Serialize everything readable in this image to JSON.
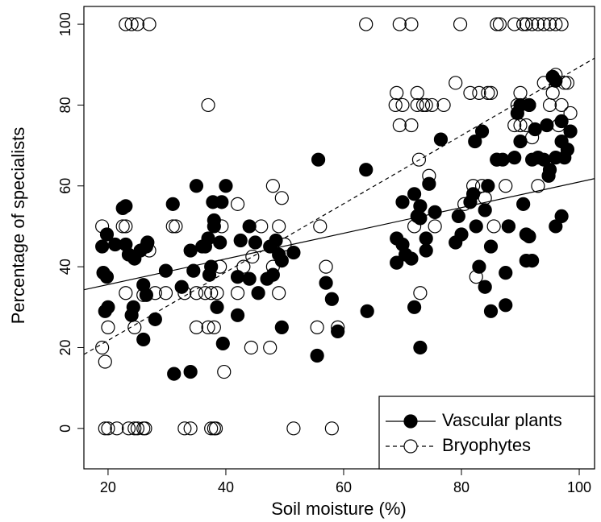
{
  "chart_data": {
    "type": "scatter",
    "x_label": "Soil moisture (%)",
    "y_label": "Percentage of specialists",
    "xlim": [
      15.9,
      102.6
    ],
    "ylim": [
      -10,
      104.4
    ],
    "xticks": [
      20,
      40,
      60,
      80,
      100
    ],
    "yticks": [
      0,
      20,
      40,
      60,
      80,
      100
    ],
    "legend": "bottom-right",
    "series": [
      {
        "name": "Vascular plants",
        "color": "#000000",
        "filled": true,
        "line_style": "solid",
        "fit": {
          "x": [
            15.9,
            102.6
          ],
          "y": [
            34.3,
            61.8
          ]
        },
        "x": [
          19,
          19.2,
          19.5,
          19.8,
          20,
          19.8,
          21.2,
          22.5,
          23,
          23,
          23.5,
          24,
          24.3,
          24.5,
          25.5,
          26,
          26,
          26.5,
          26.7,
          26.5,
          28,
          29.8,
          31,
          31.2,
          32.5,
          34,
          34,
          34.5,
          35,
          36,
          36.5,
          37,
          37.2,
          37.5,
          37.8,
          38,
          38,
          38.5,
          39,
          39.3,
          39.5,
          40,
          42,
          42,
          42.5,
          44,
          44,
          45,
          45.5,
          47,
          47.5,
          48,
          48.5,
          49,
          49.5,
          49.5,
          51.5,
          55.5,
          55.7,
          57,
          58,
          59,
          63.8,
          64,
          69,
          69,
          70,
          70,
          70.5,
          71.5,
          72,
          72,
          72.5,
          73,
          73,
          73,
          74,
          74,
          74.5,
          75.5,
          76.5,
          79,
          79.5,
          80,
          81.5,
          82,
          82.3,
          82.5,
          83,
          83.5,
          84,
          84,
          84.5,
          85,
          85,
          86,
          87,
          87.5,
          87.5,
          88,
          89,
          89.5,
          90,
          90,
          90.5,
          91,
          91,
          91.5,
          91.5,
          92,
          92,
          92.5,
          93,
          94,
          94.5,
          94.8,
          95,
          95.5,
          96,
          96,
          96,
          97,
          97,
          97,
          97.5,
          98,
          98.5
        ],
        "y": [
          45,
          38.5,
          29,
          48,
          30,
          37.5,
          45.5,
          54.5,
          55,
          45.5,
          43,
          28,
          30,
          42,
          44,
          35.5,
          22,
          33,
          46,
          45,
          27,
          39,
          55.5,
          13.5,
          35,
          14,
          44,
          39,
          60,
          45,
          45,
          47,
          38,
          40,
          56,
          51.5,
          50,
          30,
          46,
          56,
          21,
          60,
          28,
          37.5,
          46.5,
          37,
          50,
          46,
          33.5,
          37,
          45,
          38,
          46.5,
          43,
          25,
          41.5,
          43.5,
          18,
          66.5,
          36,
          32,
          24,
          64,
          29,
          47,
          41,
          56,
          45.5,
          43,
          42,
          58,
          30,
          52.5,
          55,
          52,
          20,
          44,
          47,
          60.5,
          53.5,
          71.5,
          46,
          52.5,
          48,
          56,
          58,
          71,
          50,
          40,
          73.5,
          54,
          35,
          60,
          45,
          29,
          66.5,
          66.5,
          38.5,
          30.5,
          50,
          67,
          78,
          80,
          71,
          55.5,
          48,
          41.5,
          47.5,
          80,
          41.5,
          66.5,
          74,
          67,
          66.5,
          75,
          62.5,
          64,
          87,
          86,
          67,
          50,
          76,
          52.5,
          71,
          67,
          69,
          73.5
        ]
      },
      {
        "name": "Bryophytes",
        "color": "#000000",
        "filled": false,
        "line_style": "dashed",
        "fit": {
          "x": [
            15.9,
            102.6
          ],
          "y": [
            18.3,
            91.6
          ]
        },
        "x": [
          23,
          24,
          25,
          27,
          63.8,
          69.5,
          71.5,
          79.8,
          86,
          86.5,
          89,
          90.5,
          91,
          92,
          93,
          94,
          95,
          96,
          97,
          19.5,
          20,
          21.5,
          23.5,
          24.5,
          25,
          26,
          26.3,
          33,
          34,
          37.5,
          38,
          38.3,
          51.5,
          58,
          19,
          19,
          19.5,
          20,
          22.5,
          23,
          23,
          24.5,
          26,
          27,
          28,
          29.8,
          31,
          31.5,
          33,
          35,
          35,
          36.5,
          37,
          37,
          37.5,
          38,
          38.5,
          39,
          39.3,
          39.7,
          42,
          42,
          43,
          44.3,
          44.5,
          46,
          47.5,
          48,
          48,
          49,
          49,
          49.5,
          50,
          55.5,
          56,
          57,
          59,
          68.8,
          69,
          69.5,
          70,
          71.5,
          72,
          72.5,
          72.5,
          72.8,
          73,
          73.5,
          74,
          74.5,
          75,
          75.5,
          77,
          79,
          80.5,
          81.5,
          82,
          82.5,
          83,
          83.5,
          84,
          84.5,
          85,
          85.5,
          86,
          87.5,
          88,
          89,
          89.5,
          90,
          90,
          91,
          91.5,
          92,
          93,
          94,
          95,
          95.5,
          96,
          96.5,
          97,
          97.5,
          98,
          98.5
        ],
        "y": [
          100,
          100,
          100,
          100,
          100,
          100,
          100,
          100,
          100,
          100,
          100,
          100,
          100,
          100,
          100,
          100,
          100,
          100,
          100,
          0,
          0,
          0,
          0,
          0,
          0,
          0,
          0,
          0,
          0,
          0,
          0,
          0,
          0,
          0,
          50,
          20,
          16.5,
          25,
          50,
          50,
          33.5,
          25,
          33,
          44,
          33.5,
          33.5,
          50,
          50,
          33.5,
          33.5,
          25,
          33.5,
          80,
          25,
          33.5,
          25,
          33.5,
          40,
          50,
          14,
          55.5,
          33.5,
          40,
          20,
          42.5,
          50,
          20,
          40,
          60,
          50,
          33.5,
          57,
          45.5,
          25,
          50,
          40,
          25,
          80,
          83,
          75,
          80,
          75,
          50,
          80,
          83,
          66.5,
          33.5,
          80,
          80,
          62.5,
          80,
          50,
          80,
          85.5,
          55.5,
          83,
          60,
          37.5,
          83,
          60,
          57,
          83,
          83,
          50,
          66.5,
          60,
          50,
          75,
          80,
          83,
          75,
          75,
          80,
          72,
          60,
          85.5,
          80,
          83,
          87.5,
          75,
          80,
          85.5,
          85.5,
          78
        ]
      }
    ]
  }
}
